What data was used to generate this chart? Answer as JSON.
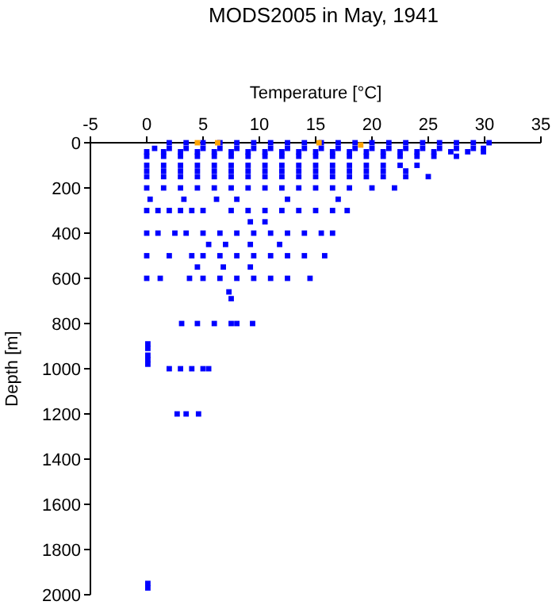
{
  "chart_data": {
    "type": "scatter",
    "title": "MODS2005 in May, 1941",
    "xlabel": "Temperature [°C]",
    "ylabel": "Depth [m]",
    "xlim": [
      -5,
      35
    ],
    "xticks": [
      -5,
      0,
      5,
      10,
      15,
      20,
      25,
      30,
      35
    ],
    "ylim": [
      2000,
      0
    ],
    "yticks": [
      0,
      200,
      400,
      600,
      800,
      1000,
      1200,
      1400,
      1600,
      1800,
      2000
    ],
    "marker": "square",
    "series": [
      {
        "color": "#0000ff",
        "x": [
          2,
          3.5,
          5,
          6.5,
          8,
          9.5,
          11,
          12.5,
          14,
          15.5,
          17,
          18.5,
          20,
          21.5,
          23,
          24.5,
          26,
          27.5,
          29,
          30.4,
          0.7,
          2,
          3.5,
          5,
          6.5,
          8,
          9.5,
          11,
          12.5,
          14,
          15.5,
          17,
          18.5,
          20,
          21.5,
          23,
          24.5,
          26,
          27.5,
          29,
          29.9,
          0,
          1.5,
          3,
          4.5,
          6,
          7.5,
          9,
          10.5,
          12,
          13.5,
          15,
          16.5,
          18,
          19.5,
          21,
          22.5,
          24,
          25.5,
          27,
          28.5,
          29.9,
          0,
          1.5,
          3,
          4.5,
          6,
          7.5,
          9,
          10.5,
          12,
          13.5,
          15,
          16.5,
          18,
          19.5,
          21,
          22.5,
          24,
          25.5,
          27.5,
          0,
          1.5,
          3,
          4.5,
          6,
          7.5,
          9,
          10.5,
          12,
          13.5,
          15,
          16.5,
          18,
          19.5,
          21,
          22.5,
          24,
          0,
          1.5,
          3,
          4.5,
          6,
          7.5,
          9,
          10.5,
          12,
          13.5,
          15,
          16.5,
          18,
          19.5,
          21,
          23,
          0,
          1.5,
          3,
          4.5,
          6,
          7.5,
          9,
          10.5,
          12,
          13.5,
          15,
          16.5,
          18,
          19.5,
          21,
          23,
          25,
          0,
          1.5,
          3,
          4.5,
          6,
          7.5,
          9,
          10.5,
          12,
          13.5,
          15,
          16.5,
          18,
          20,
          22,
          0.3,
          3.3,
          6.2,
          8,
          12.5,
          17,
          0,
          1,
          2,
          3,
          4,
          5,
          7.5,
          9,
          10.5,
          12,
          13.5,
          15,
          16.5,
          17.8,
          9.2,
          10.5,
          0,
          1,
          2.5,
          3.5,
          5,
          6.5,
          8,
          9.5,
          11,
          12.5,
          14,
          15.5,
          16.5,
          5.5,
          7,
          9.2,
          11.8,
          0,
          2,
          4,
          5,
          6.5,
          8,
          9.5,
          11,
          12.5,
          14,
          15.8,
          4.5,
          6.8,
          9.2,
          0,
          1.2,
          3.8,
          5,
          6.5,
          8,
          9.5,
          11,
          12.5,
          14.5,
          7.3,
          7.5,
          3.1,
          4.5,
          6,
          7.5,
          8,
          9.4,
          0.1,
          0.1,
          0.1,
          0.1,
          0.1,
          2,
          3,
          4,
          5,
          5.5,
          2.7,
          3.5,
          4.6,
          0.1,
          0.1
        ],
        "values": [
          0,
          0,
          0,
          0,
          0,
          0,
          0,
          0,
          0,
          0,
          0,
          0,
          0,
          0,
          0,
          0,
          0,
          0,
          0,
          0,
          25,
          25,
          25,
          25,
          25,
          25,
          25,
          25,
          25,
          25,
          25,
          25,
          25,
          25,
          25,
          25,
          25,
          25,
          25,
          25,
          25,
          40,
          40,
          40,
          40,
          40,
          40,
          40,
          40,
          40,
          40,
          40,
          40,
          40,
          40,
          40,
          40,
          40,
          40,
          40,
          40,
          40,
          60,
          60,
          60,
          60,
          60,
          60,
          60,
          60,
          60,
          60,
          60,
          60,
          60,
          60,
          60,
          60,
          60,
          60,
          60,
          100,
          100,
          100,
          100,
          100,
          100,
          100,
          100,
          100,
          100,
          100,
          100,
          100,
          100,
          100,
          100,
          100,
          125,
          125,
          125,
          125,
          125,
          125,
          125,
          125,
          125,
          125,
          125,
          125,
          125,
          125,
          125,
          125,
          150,
          150,
          150,
          150,
          150,
          150,
          150,
          150,
          150,
          150,
          150,
          150,
          150,
          150,
          150,
          150,
          150,
          200,
          200,
          200,
          200,
          200,
          200,
          200,
          200,
          200,
          200,
          200,
          200,
          200,
          200,
          200,
          250,
          250,
          250,
          250,
          250,
          250,
          300,
          300,
          300,
          300,
          300,
          300,
          300,
          300,
          300,
          300,
          300,
          300,
          300,
          300,
          350,
          350,
          400,
          400,
          400,
          400,
          400,
          400,
          400,
          400,
          400,
          400,
          400,
          400,
          400,
          450,
          450,
          450,
          450,
          500,
          500,
          500,
          500,
          500,
          500,
          500,
          500,
          500,
          500,
          500,
          550,
          550,
          550,
          600,
          600,
          600,
          600,
          600,
          600,
          600,
          600,
          600,
          600,
          660,
          690,
          800,
          800,
          800,
          800,
          800,
          800,
          890,
          910,
          940,
          960,
          980,
          1000,
          1000,
          1000,
          1000,
          1000,
          1200,
          1200,
          1200,
          1950,
          1970
        ]
      },
      {
        "color": "#ffa500",
        "x": [
          4.5,
          6.3,
          15.3,
          19
        ],
        "values": [
          0,
          0,
          0,
          10
        ]
      }
    ]
  }
}
